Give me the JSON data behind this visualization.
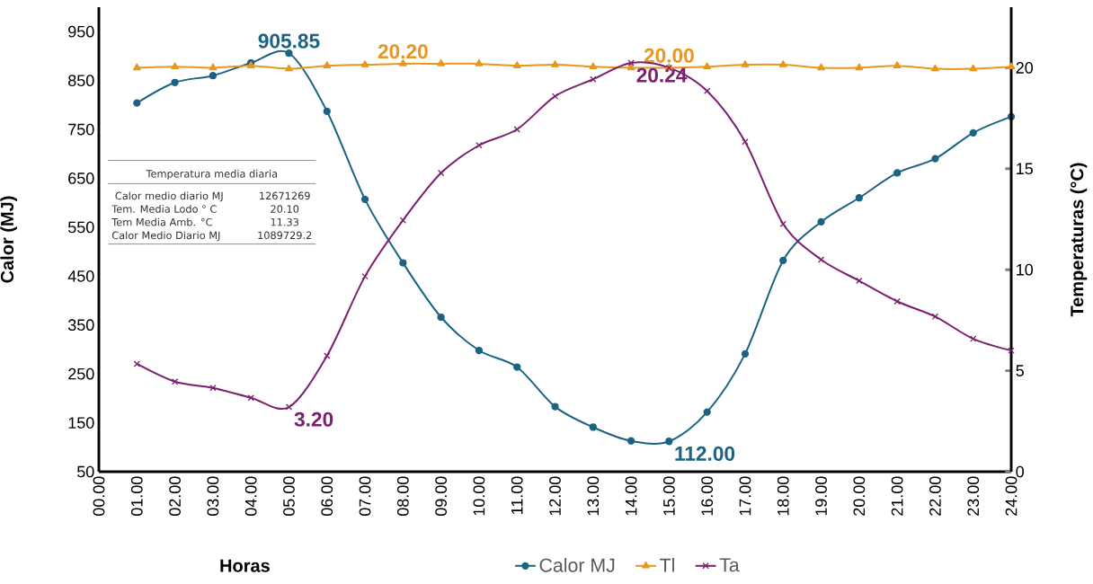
{
  "chart_data": {
    "type": "line",
    "xlabel": "Horas",
    "ylabel": "Calor (MJ)",
    "y2label": "Temperaturas (°C)",
    "categories": [
      "00.00",
      "01.00",
      "02.00",
      "03.00",
      "04.00",
      "05.00",
      "06.00",
      "07.00",
      "08.00",
      "09.00",
      "10.00",
      "11.00",
      "12.00",
      "13.00",
      "14.00",
      "15.00",
      "16.00",
      "17.00",
      "18.00",
      "19.00",
      "20.00",
      "21.00",
      "22.00",
      "23.00",
      "24.00"
    ],
    "ylim": [
      50,
      1000
    ],
    "yticks": [
      50,
      150,
      250,
      350,
      450,
      550,
      650,
      750,
      850,
      950
    ],
    "y2lim": [
      0,
      23
    ],
    "y2ticks": [
      0,
      5,
      10,
      15,
      20
    ],
    "legend": "bottom",
    "series": [
      {
        "name": "Calor MJ",
        "color": "#1b6283",
        "marker": "circle",
        "values": [
          null,
          804,
          846,
          860,
          886,
          905.85,
          787,
          607,
          477,
          366,
          298,
          264,
          183,
          141,
          113,
          112,
          172,
          291,
          482,
          561,
          610,
          661,
          690,
          743,
          776
        ],
        "value_labels": [
          null,
          null,
          null,
          null,
          null,
          "905.85",
          null,
          null,
          null,
          null,
          null,
          null,
          null,
          null,
          null,
          "112.00",
          null,
          null,
          null,
          null,
          null,
          null,
          null,
          null,
          null
        ]
      },
      {
        "name": "Tl",
        "color": "#e8961e",
        "marker": "triangle",
        "axis": "y2",
        "values": [
          null,
          20.0,
          20.05,
          20.0,
          20.1,
          19.95,
          20.1,
          20.15,
          20.2,
          20.2,
          20.2,
          20.1,
          20.15,
          20.05,
          20.0,
          20.0,
          20.05,
          20.15,
          20.15,
          20.0,
          20.0,
          20.1,
          19.95,
          19.95,
          20.05
        ],
        "value_labels": [
          null,
          null,
          null,
          null,
          null,
          null,
          null,
          null,
          "20.20",
          null,
          null,
          null,
          null,
          null,
          null,
          "20.00",
          null,
          null,
          null,
          null,
          null,
          null,
          null,
          null,
          null
        ]
      },
      {
        "name": "Ta",
        "color": "#7b1f6e",
        "marker": "cross",
        "axis": "y2",
        "values": [
          null,
          5.34,
          4.46,
          4.15,
          3.66,
          3.2,
          5.74,
          9.67,
          12.45,
          14.79,
          16.16,
          16.95,
          18.59,
          19.43,
          20.24,
          20.0,
          18.85,
          16.34,
          12.27,
          10.5,
          9.45,
          8.43,
          7.68,
          6.58,
          6.0
        ],
        "value_labels": [
          null,
          null,
          null,
          null,
          null,
          "3.20",
          null,
          null,
          null,
          null,
          null,
          null,
          null,
          null,
          "20.24",
          null,
          null,
          null,
          null,
          null,
          null,
          null,
          null,
          null,
          null
        ]
      }
    ],
    "annotations": [
      "Temperatura media diaria",
      "Calor medio diario MJ",
      "12671269",
      "Tem. Media Lodo ° C",
      "20.10",
      "Tem Media Amb. °C",
      "11.33",
      "Calor Medio Diario MJ",
      "1089729.2"
    ]
  }
}
